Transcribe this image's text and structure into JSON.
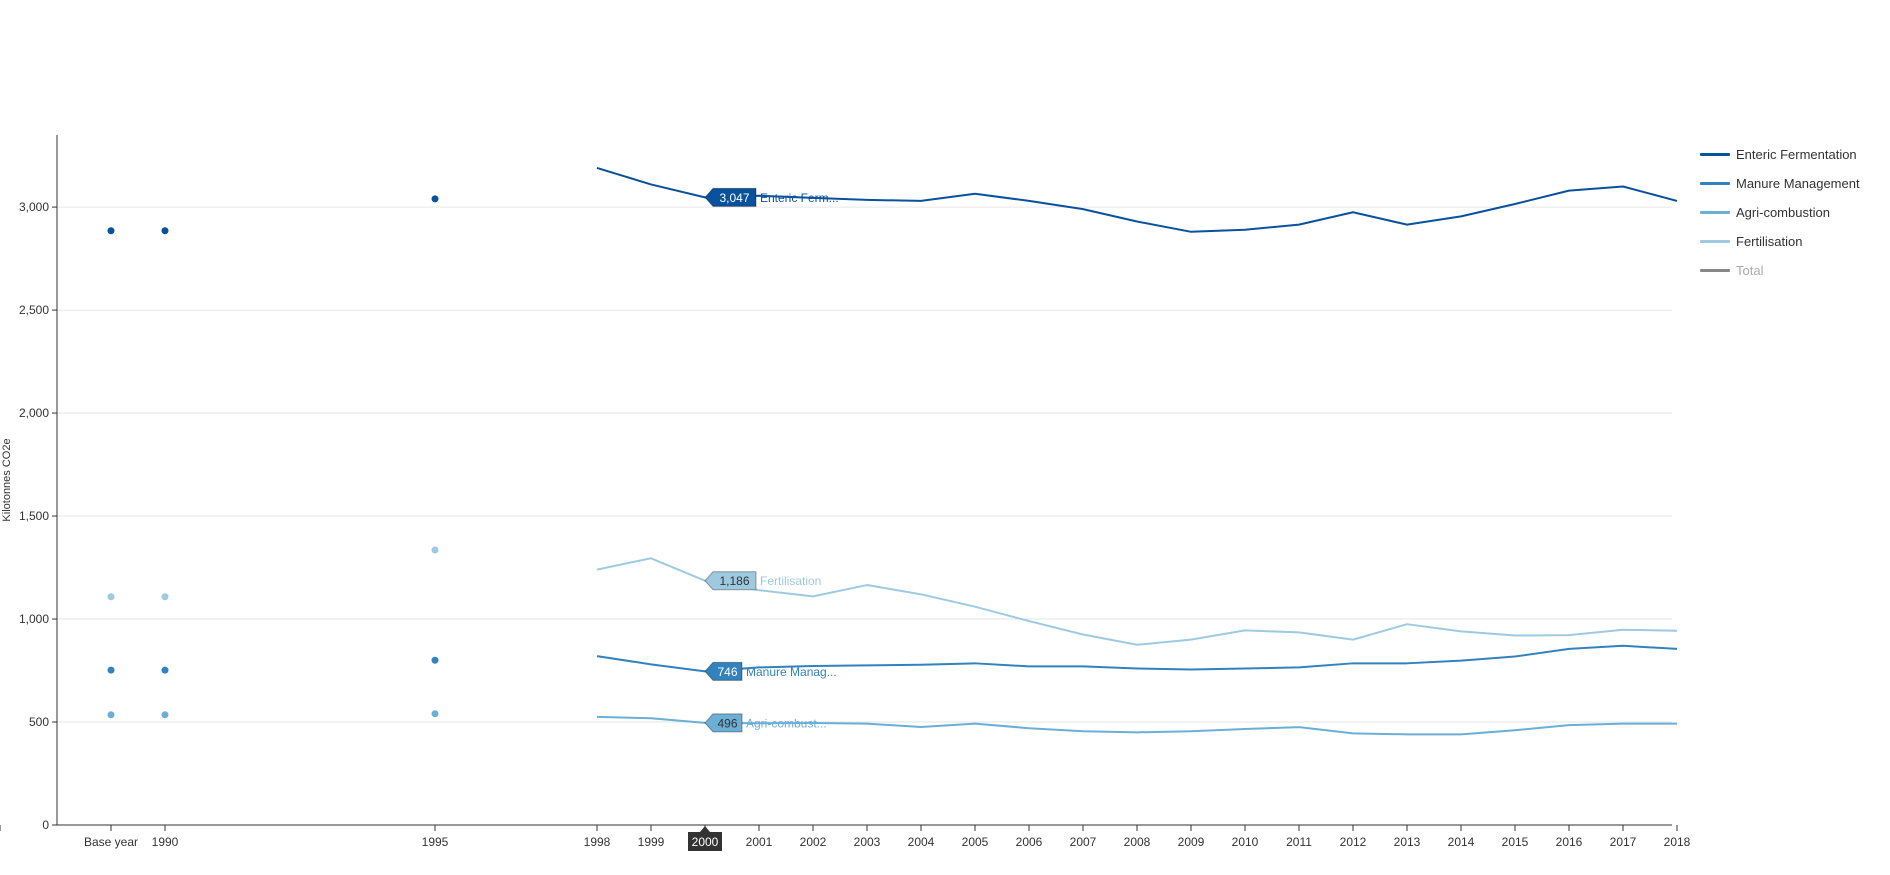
{
  "chart_data": {
    "type": "line",
    "ylabel": "Kilotonnes CO2e",
    "ylim": [
      0,
      3350
    ],
    "yticks": [
      0,
      500,
      1000,
      1500,
      2000,
      2500,
      3000
    ],
    "ytick_labels": [
      "0",
      "500",
      "1,000",
      "1,500",
      "2,000",
      "2,500",
      "3,000"
    ],
    "x_categories": [
      "Base year",
      "1990",
      "1995",
      "1998",
      "1999",
      "2000",
      "2001",
      "2002",
      "2003",
      "2004",
      "2005",
      "2006",
      "2007",
      "2008",
      "2009",
      "2010",
      "2011",
      "2012",
      "2013",
      "2014",
      "2015",
      "2016",
      "2017",
      "2018"
    ],
    "highlighted_x": "2000",
    "point_only_categories": [
      "Base year",
      "1990",
      "1995"
    ],
    "series": [
      {
        "name": "Enteric Fermentation",
        "color": "#08519c",
        "dots": {
          "Base year": 2885,
          "1990": 2885,
          "1995": 3040
        },
        "line_x": [
          "1998",
          "1999",
          "2000",
          "2001",
          "2002",
          "2003",
          "2004",
          "2005",
          "2006",
          "2007",
          "2008",
          "2009",
          "2010",
          "2011",
          "2012",
          "2013",
          "2014",
          "2015",
          "2016",
          "2017",
          "2018"
        ],
        "line_y": [
          3190,
          3110,
          3047,
          3055,
          3045,
          3035,
          3030,
          3065,
          3030,
          2990,
          2930,
          2880,
          2890,
          2915,
          2975,
          2915,
          2955,
          3015,
          3080,
          3100,
          3030
        ]
      },
      {
        "name": "Manure Management",
        "color": "#3182bd",
        "dots": {
          "Base year": 752,
          "1990": 752,
          "1995": 800
        },
        "line_x": [
          "1998",
          "1999",
          "2000",
          "2001",
          "2002",
          "2003",
          "2004",
          "2005",
          "2006",
          "2007",
          "2008",
          "2009",
          "2010",
          "2011",
          "2012",
          "2013",
          "2014",
          "2015",
          "2016",
          "2017",
          "2018"
        ],
        "line_y": [
          820,
          780,
          746,
          765,
          772,
          775,
          778,
          785,
          770,
          770,
          760,
          755,
          760,
          765,
          785,
          785,
          798,
          818,
          855,
          870,
          855
        ]
      },
      {
        "name": "Agri-combustion",
        "color": "#6baed6",
        "dots": {
          "Base year": 535,
          "1990": 535,
          "1995": 540
        },
        "line_x": [
          "1998",
          "1999",
          "2000",
          "2001",
          "2002",
          "2003",
          "2004",
          "2005",
          "2006",
          "2007",
          "2008",
          "2009",
          "2010",
          "2011",
          "2012",
          "2013",
          "2014",
          "2015",
          "2016",
          "2017",
          "2018"
        ],
        "line_y": [
          525,
          518,
          496,
          494,
          495,
          492,
          476,
          492,
          470,
          455,
          450,
          455,
          466,
          475,
          445,
          440,
          440,
          460,
          485,
          492,
          492
        ]
      },
      {
        "name": "Fertilisation",
        "color": "#9ecae1",
        "dots": {
          "Base year": 1108,
          "1990": 1108,
          "1995": 1335
        },
        "line_x": [
          "1998",
          "1999",
          "2000",
          "2001",
          "2002",
          "2003",
          "2004",
          "2005",
          "2006",
          "2007",
          "2008",
          "2009",
          "2010",
          "2011",
          "2012",
          "2013",
          "2014",
          "2015",
          "2016",
          "2017",
          "2018"
        ],
        "line_y": [
          1240,
          1295,
          1186,
          1140,
          1110,
          1165,
          1120,
          1060,
          990,
          925,
          875,
          900,
          945,
          935,
          900,
          975,
          940,
          920,
          922,
          948,
          943
        ]
      }
    ],
    "tooltips": [
      {
        "series": "Enteric Fermentation",
        "value_label": "3,047",
        "name_label": "Enteric Ferm...",
        "color": "#08519c",
        "text_color": "#ffffff"
      },
      {
        "series": "Fertilisation",
        "value_label": "1,186",
        "name_label": "Fertilisation",
        "color": "#9ecae1",
        "text_color": "#333333"
      },
      {
        "series": "Manure Management",
        "value_label": "746",
        "name_label": "Manure Manag...",
        "color": "#3182bd",
        "text_color": "#ffffff"
      },
      {
        "series": "Agri-combustion",
        "value_label": "496",
        "name_label": "Agri-combust...",
        "color": "#6baed6",
        "text_color": "#333333"
      }
    ],
    "legend": [
      {
        "label": "Enteric Fermentation",
        "color": "#08519c",
        "active": true
      },
      {
        "label": "Manure Management",
        "color": "#3182bd",
        "active": true
      },
      {
        "label": "Agri-combustion",
        "color": "#6baed6",
        "active": true
      },
      {
        "label": "Fertilisation",
        "color": "#9ecae1",
        "active": true
      },
      {
        "label": "Total",
        "color": "#888888",
        "active": false
      }
    ]
  }
}
